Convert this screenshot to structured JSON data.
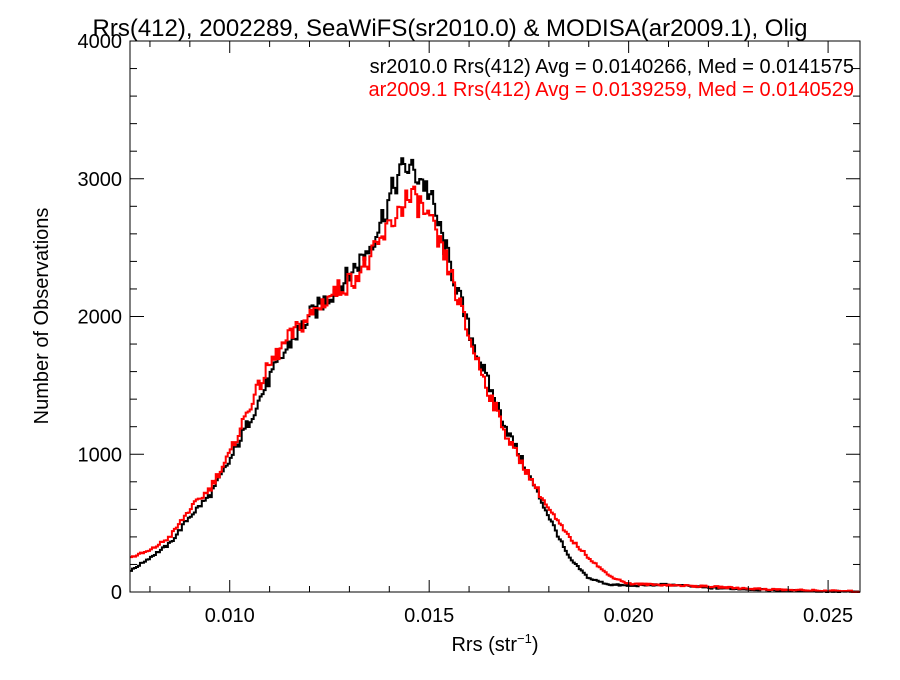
{
  "chart_data": {
    "type": "line",
    "title": "Rrs(412), 2002289, SeaWiFS(sr2010.0) & MODISA(ar2009.1), Olig",
    "xlabel": "Rrs (str",
    "xlabel_sup": "−1",
    "xlabel_close": ")",
    "ylabel": "Number of Observations",
    "xlim": [
      0.0075,
      0.0258
    ],
    "ylim": [
      0,
      4000
    ],
    "x_ticks": [
      0.01,
      0.015,
      0.02,
      0.025
    ],
    "x_tick_labels": [
      "0.010",
      "0.015",
      "0.020",
      "0.025"
    ],
    "y_ticks": [
      0,
      1000,
      2000,
      3000,
      4000
    ],
    "y_tick_labels": [
      "0",
      "1000",
      "2000",
      "3000",
      "4000"
    ],
    "grid": false,
    "legend_position": "top-right",
    "series": [
      {
        "name": "sr2010.0 Rrs(412) Avg = 0.0140266, Med = 0.0141575",
        "color": "#000000",
        "x": [
          0.0075,
          0.008,
          0.0085,
          0.009,
          0.0095,
          0.01,
          0.0105,
          0.011,
          0.0115,
          0.012,
          0.0125,
          0.013,
          0.0135,
          0.0138,
          0.014,
          0.0142,
          0.0144,
          0.0146,
          0.0148,
          0.015,
          0.0155,
          0.016,
          0.0165,
          0.017,
          0.0175,
          0.018,
          0.0185,
          0.019,
          0.0195,
          0.02,
          0.021,
          0.022,
          0.023,
          0.024,
          0.025,
          0.0258
        ],
        "values": [
          150,
          250,
          350,
          550,
          700,
          950,
          1250,
          1550,
          1800,
          2000,
          2150,
          2300,
          2500,
          2700,
          2850,
          3000,
          3100,
          3050,
          3000,
          2900,
          2400,
          1900,
          1500,
          1150,
          850,
          550,
          250,
          100,
          55,
          45,
          55,
          30,
          20,
          10,
          5,
          0
        ]
      },
      {
        "name": "ar2009.1 Rrs(412) Avg = 0.0139259, Med = 0.0140529",
        "color": "#ff0000",
        "x": [
          0.0075,
          0.008,
          0.0085,
          0.009,
          0.0095,
          0.01,
          0.0105,
          0.011,
          0.0115,
          0.012,
          0.0125,
          0.013,
          0.0135,
          0.0138,
          0.014,
          0.0142,
          0.0144,
          0.0146,
          0.0148,
          0.015,
          0.0155,
          0.016,
          0.0165,
          0.017,
          0.0175,
          0.018,
          0.0185,
          0.019,
          0.0195,
          0.02,
          0.021,
          0.022,
          0.023,
          0.024,
          0.025,
          0.0258
        ],
        "values": [
          250,
          300,
          400,
          600,
          750,
          1000,
          1350,
          1650,
          1850,
          2000,
          2150,
          2250,
          2400,
          2550,
          2650,
          2750,
          2850,
          2850,
          2800,
          2700,
          2350,
          1850,
          1450,
          1100,
          850,
          600,
          400,
          250,
          120,
          60,
          50,
          40,
          25,
          15,
          8,
          3
        ]
      }
    ]
  }
}
